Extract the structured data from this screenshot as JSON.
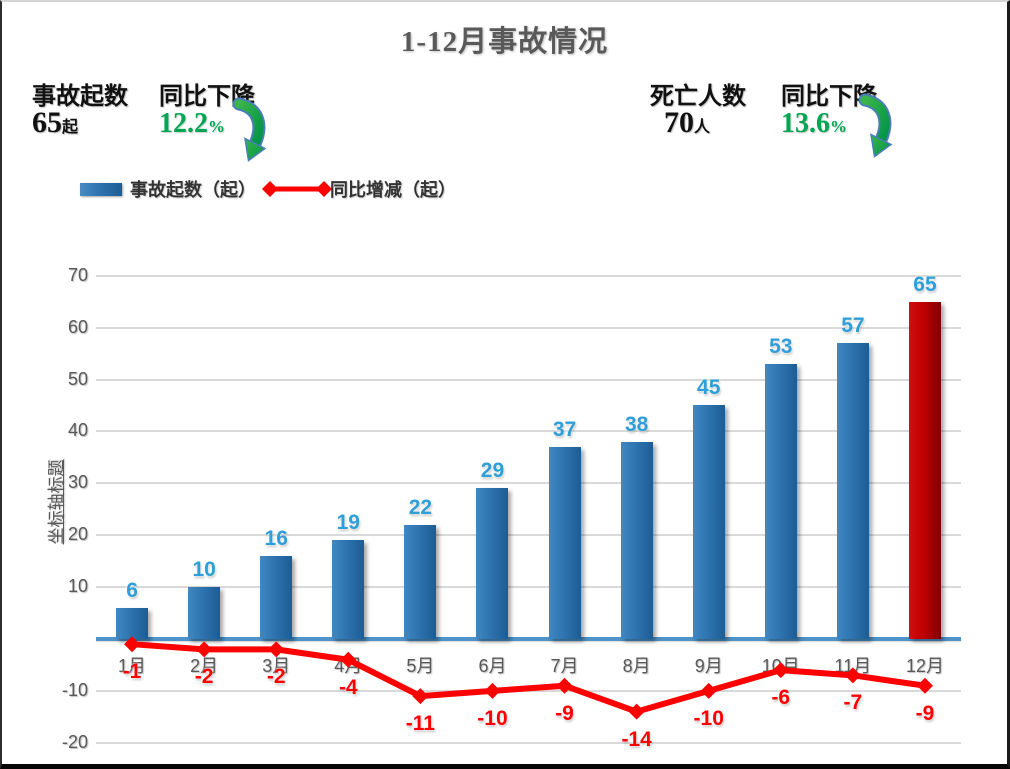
{
  "title": "1-12月事故情况",
  "stats": {
    "accidents": {
      "label": "事故起数",
      "value": "65",
      "unit": "起",
      "trend_label": "同比下降",
      "trend_value": "12.2",
      "trend_unit": "%"
    },
    "deaths": {
      "label": "死亡人数",
      "value": "70",
      "unit": "人",
      "trend_label": "同比下降",
      "trend_value": "13.6",
      "trend_unit": "%"
    }
  },
  "legend": {
    "bar_label": "事故起数（起）",
    "line_label": "同比增减（起）"
  },
  "chart_data": {
    "type": "bar+line",
    "title": "1-12月事故情况",
    "categories": [
      "1月",
      "2月",
      "3月",
      "4月",
      "5月",
      "6月",
      "7月",
      "8月",
      "9月",
      "10月",
      "11月",
      "12月"
    ],
    "series": [
      {
        "name": "事故起数（起）",
        "type": "bar",
        "values": [
          6,
          10,
          16,
          19,
          22,
          29,
          37,
          38,
          45,
          53,
          57,
          65
        ],
        "color": "#2E74B0",
        "highlight_index": 11,
        "highlight_color": "#C00000"
      },
      {
        "name": "同比增减（起）",
        "type": "line",
        "values": [
          -1,
          -2,
          -2,
          -4,
          -11,
          -10,
          -9,
          -14,
          -10,
          -6,
          -7,
          -9
        ],
        "color": "#FF0000"
      }
    ],
    "y_axis": {
      "title": "坐标轴标题",
      "ticks": [
        70,
        60,
        50,
        40,
        30,
        20,
        10,
        -10,
        -20
      ],
      "min": -20,
      "max": 70
    },
    "x_axis": {
      "label_suffix": "月"
    },
    "grid": true,
    "legend_position": "top-left",
    "colors": {
      "bar_value_label": "#2E9FD8",
      "line_value_label": "#FF0000",
      "axis_text": "#595959",
      "gridline": "#D9D9D9",
      "zero_line": "#4E93C9",
      "trend_green": "#00A651"
    }
  }
}
